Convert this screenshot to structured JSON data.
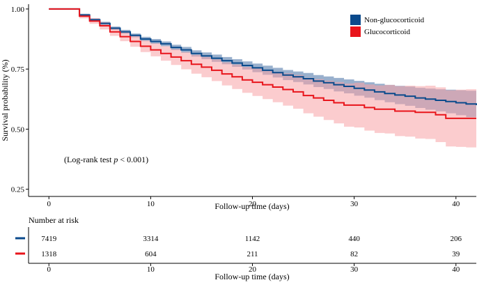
{
  "chart_data": {
    "type": "line",
    "subtype": "kaplan-meier",
    "title": "",
    "xlabel": "Follow-up time (days)",
    "ylabel": "Survival probability (%)",
    "xlim": [
      -2,
      42
    ],
    "ylim": [
      0.22,
      1.02
    ],
    "x_ticks": [
      0,
      10,
      20,
      30,
      40
    ],
    "y_ticks": [
      0.25,
      0.5,
      0.75,
      1.0
    ],
    "y_tick_labels": [
      "0.25",
      "0.50",
      "0.75",
      "1.00"
    ],
    "annotation": {
      "prefix": "(Log-rank test ",
      "stat": "p",
      "suffix": " < 0.001)"
    },
    "legend": {
      "position": "top-right"
    },
    "series": [
      {
        "name": "Non-glucocorticoid",
        "color": "#0a4a8c",
        "band_color": "#6e8fb8",
        "x": [
          0,
          2,
          3,
          4,
          5,
          6,
          7,
          8,
          9,
          10,
          11,
          12,
          13,
          14,
          15,
          16,
          17,
          18,
          19,
          20,
          21,
          22,
          23,
          24,
          25,
          26,
          27,
          28,
          29,
          30,
          31,
          32,
          33,
          34,
          35,
          36,
          37,
          38,
          39,
          40,
          41,
          42
        ],
        "y": [
          1.0,
          1.0,
          0.975,
          0.955,
          0.94,
          0.92,
          0.905,
          0.89,
          0.875,
          0.865,
          0.855,
          0.84,
          0.83,
          0.815,
          0.805,
          0.795,
          0.785,
          0.775,
          0.765,
          0.755,
          0.745,
          0.735,
          0.725,
          0.718,
          0.71,
          0.7,
          0.693,
          0.685,
          0.678,
          0.67,
          0.663,
          0.655,
          0.648,
          0.642,
          0.637,
          0.63,
          0.625,
          0.62,
          0.615,
          0.61,
          0.605,
          0.6
        ],
        "lower": [
          1.0,
          1.0,
          0.97,
          0.949,
          0.933,
          0.913,
          0.897,
          0.882,
          0.866,
          0.855,
          0.845,
          0.829,
          0.818,
          0.802,
          0.791,
          0.78,
          0.77,
          0.759,
          0.748,
          0.737,
          0.726,
          0.715,
          0.704,
          0.696,
          0.686,
          0.675,
          0.667,
          0.657,
          0.649,
          0.639,
          0.631,
          0.621,
          0.612,
          0.604,
          0.597,
          0.588,
          0.581,
          0.574,
          0.566,
          0.558,
          0.55,
          0.542
        ],
        "upper": [
          1.0,
          1.0,
          0.98,
          0.961,
          0.947,
          0.927,
          0.913,
          0.898,
          0.884,
          0.875,
          0.865,
          0.851,
          0.842,
          0.828,
          0.819,
          0.81,
          0.8,
          0.791,
          0.782,
          0.773,
          0.764,
          0.755,
          0.746,
          0.74,
          0.734,
          0.725,
          0.719,
          0.713,
          0.707,
          0.701,
          0.695,
          0.689,
          0.684,
          0.68,
          0.677,
          0.672,
          0.669,
          0.666,
          0.664,
          0.662,
          0.66,
          0.658
        ]
      },
      {
        "name": "Glucocorticoid",
        "color": "#e8141b",
        "band_color": "#f7a3a6",
        "x": [
          0,
          2,
          3,
          4,
          5,
          6,
          7,
          8,
          9,
          10,
          11,
          12,
          13,
          14,
          15,
          16,
          17,
          18,
          19,
          20,
          21,
          22,
          23,
          24,
          25,
          26,
          27,
          28,
          29,
          30,
          31,
          32,
          33,
          34,
          35,
          36,
          37,
          38,
          39,
          40,
          41,
          42
        ],
        "y": [
          1.0,
          1.0,
          0.97,
          0.95,
          0.93,
          0.905,
          0.885,
          0.865,
          0.845,
          0.83,
          0.815,
          0.8,
          0.785,
          0.77,
          0.758,
          0.745,
          0.73,
          0.718,
          0.705,
          0.695,
          0.685,
          0.675,
          0.665,
          0.655,
          0.64,
          0.63,
          0.62,
          0.61,
          0.6,
          0.6,
          0.59,
          0.583,
          0.583,
          0.575,
          0.575,
          0.57,
          0.57,
          0.56,
          0.545,
          0.545,
          0.545,
          0.545
        ],
        "lower": [
          1.0,
          1.0,
          0.961,
          0.938,
          0.915,
          0.888,
          0.866,
          0.843,
          0.821,
          0.803,
          0.785,
          0.767,
          0.749,
          0.731,
          0.716,
          0.7,
          0.682,
          0.667,
          0.651,
          0.638,
          0.625,
          0.612,
          0.598,
          0.585,
          0.566,
          0.552,
          0.538,
          0.524,
          0.51,
          0.507,
          0.494,
          0.484,
          0.482,
          0.471,
          0.469,
          0.461,
          0.459,
          0.446,
          0.428,
          0.426,
          0.424,
          0.422
        ],
        "upper": [
          1.0,
          1.0,
          0.979,
          0.962,
          0.945,
          0.922,
          0.904,
          0.887,
          0.869,
          0.857,
          0.845,
          0.833,
          0.821,
          0.809,
          0.8,
          0.79,
          0.778,
          0.769,
          0.759,
          0.752,
          0.745,
          0.738,
          0.732,
          0.725,
          0.714,
          0.708,
          0.702,
          0.696,
          0.69,
          0.693,
          0.686,
          0.682,
          0.684,
          0.679,
          0.681,
          0.679,
          0.681,
          0.674,
          0.662,
          0.664,
          0.666,
          0.668
        ]
      }
    ],
    "risk_table": {
      "title": "Number at risk",
      "xlabel": "Follow-up time (days)",
      "x_ticks": [
        0,
        10,
        20,
        30,
        40
      ],
      "time_points": [
        0,
        10,
        20,
        30,
        40
      ],
      "rows": [
        {
          "name": "Non-glucocorticoid",
          "values": [
            "7419",
            "3314",
            "1142",
            "440",
            "206"
          ]
        },
        {
          "name": "Glucocorticoid",
          "values": [
            "1318",
            "604",
            "211",
            "82",
            "39"
          ]
        }
      ]
    }
  }
}
